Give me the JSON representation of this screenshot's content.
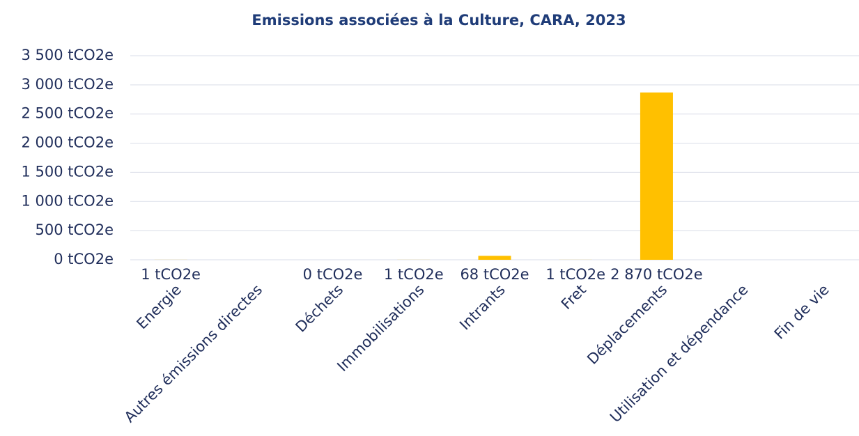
{
  "chart_data": {
    "type": "bar",
    "title": "Emissions associées à la Culture, CARA, 2023",
    "categories": [
      "Energie",
      "Autres émissions directes",
      "Déchets",
      "Immobilisations",
      "Intrants",
      "Fret",
      "Déplacements",
      "Utilisation et dépendance",
      "Fin de vie"
    ],
    "values": [
      1,
      null,
      0,
      1,
      68,
      1,
      2870,
      null,
      null
    ],
    "value_labels": [
      "1 tCO2e",
      null,
      "0 tCO2e",
      "1 tCO2e",
      "68 tCO2e",
      "1 tCO2e",
      "2 870 tCO2e",
      null,
      null
    ],
    "color": "#ffc000",
    "ylim": [
      0,
      3500
    ],
    "yticks": [
      {
        "value": 0,
        "label": "0 tCO2e"
      },
      {
        "value": 500,
        "label": "500 tCO2e"
      },
      {
        "value": 1000,
        "label": "1 000 tCO2e"
      },
      {
        "value": 1500,
        "label": "1 500 tCO2e"
      },
      {
        "value": 2000,
        "label": "2 000 tCO2e"
      },
      {
        "value": 2500,
        "label": "2 500 tCO2e"
      },
      {
        "value": 3000,
        "label": "3 000 tCO2e"
      },
      {
        "value": 3500,
        "label": "3 500 tCO2e"
      }
    ],
    "grid": true
  }
}
